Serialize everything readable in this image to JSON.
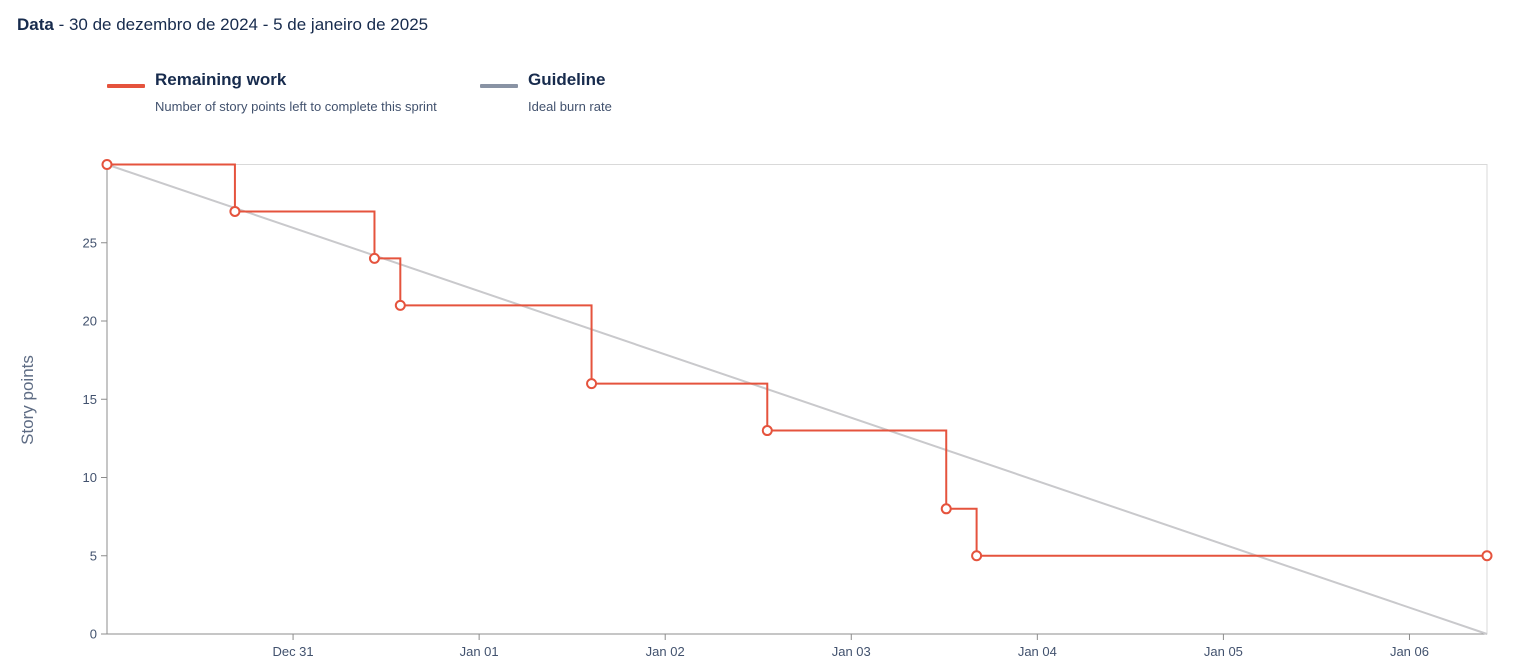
{
  "header": {
    "label": "Data",
    "range": " - 30 de dezembro de 2024 - 5 de janeiro de 2025"
  },
  "legend": [
    {
      "title": "Remaining work",
      "description": "Number of story points left to complete this sprint",
      "color": "#e5533d"
    },
    {
      "title": "Guideline",
      "description": "Ideal burn rate",
      "color": "#8993a4"
    }
  ],
  "chart_data": {
    "type": "line",
    "ylabel": "Story points",
    "xlabel": "",
    "ylim": [
      0,
      30
    ],
    "yticks": [
      0,
      5,
      10,
      15,
      20,
      25
    ],
    "xlim": [
      "2024-12-30T00:00",
      "2025-01-06T10:00"
    ],
    "xticks": [
      {
        "t": "2024-12-31T00:00",
        "label": "Dec 31"
      },
      {
        "t": "2025-01-01T00:00",
        "label": "Jan 01"
      },
      {
        "t": "2025-01-02T00:00",
        "label": "Jan 02"
      },
      {
        "t": "2025-01-03T00:00",
        "label": "Jan 03"
      },
      {
        "t": "2025-01-04T00:00",
        "label": "Jan 04"
      },
      {
        "t": "2025-01-05T00:00",
        "label": "Jan 05"
      },
      {
        "t": "2025-01-06T00:00",
        "label": "Jan 06"
      }
    ],
    "series": [
      {
        "name": "Remaining work",
        "step": true,
        "color": "#e5533d",
        "points": [
          {
            "t": "2024-12-30T00:00",
            "y": 30
          },
          {
            "t": "2024-12-30T16:30",
            "y": 27
          },
          {
            "t": "2024-12-31T10:30",
            "y": 24
          },
          {
            "t": "2024-12-31T13:50",
            "y": 21
          },
          {
            "t": "2025-01-01T14:30",
            "y": 16
          },
          {
            "t": "2025-01-02T13:10",
            "y": 13
          },
          {
            "t": "2025-01-03T12:15",
            "y": 8
          },
          {
            "t": "2025-01-03T16:10",
            "y": 5
          },
          {
            "t": "2025-01-06T10:00",
            "y": 5
          }
        ]
      },
      {
        "name": "Guideline",
        "color": "#c9c9cc",
        "points": [
          {
            "t": "2024-12-30T00:00",
            "y": 30
          },
          {
            "t": "2025-01-06T10:00",
            "y": 0
          }
        ]
      }
    ]
  }
}
